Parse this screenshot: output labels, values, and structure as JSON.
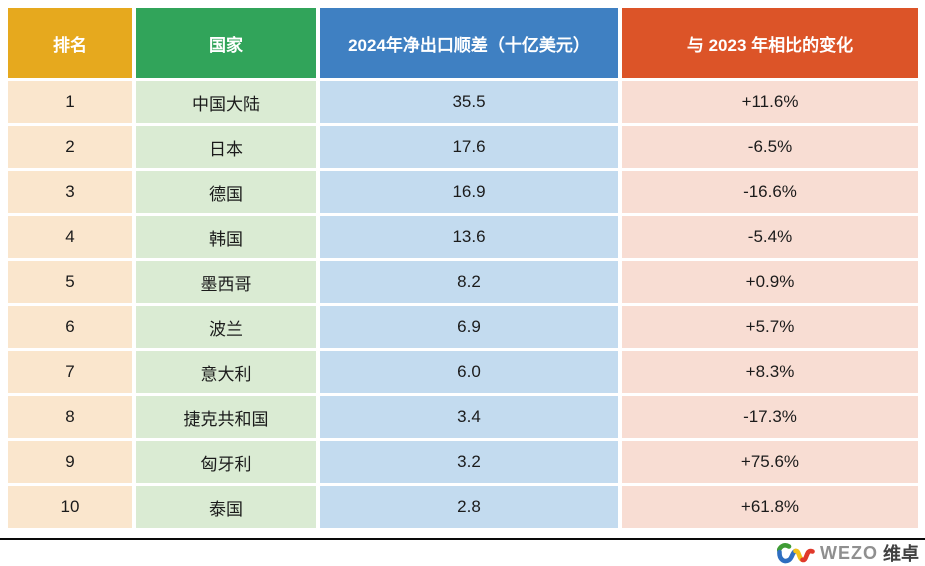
{
  "chart_data": {
    "type": "table",
    "title": "",
    "columns": [
      "排名",
      "国家",
      "2024年净出口顺差（十亿美元）",
      "与 2023 年相比的变化"
    ],
    "rows": [
      [
        "1",
        "中国大陆",
        "35.5",
        "+11.6%"
      ],
      [
        "2",
        "日本",
        "17.6",
        "-6.5%"
      ],
      [
        "3",
        "德国",
        "16.9",
        "-16.6%"
      ],
      [
        "4",
        "韩国",
        "13.6",
        "-5.4%"
      ],
      [
        "5",
        "墨西哥",
        "8.2",
        "+0.9%"
      ],
      [
        "6",
        "波兰",
        "6.9",
        "+5.7%"
      ],
      [
        "7",
        "意大利",
        "6.0",
        "+8.3%"
      ],
      [
        "8",
        "捷克共和国",
        "3.4",
        "-17.3%"
      ],
      [
        "9",
        "匈牙利",
        "3.2",
        "+75.6%"
      ],
      [
        "10",
        "泰国",
        "2.8",
        "+61.8%"
      ]
    ],
    "layout": {
      "grid": "white 3-4px gaps between cells",
      "legend": "none"
    }
  },
  "style": {
    "header_bg": [
      "#E6A91E",
      "#31A45A",
      "#3F80C2",
      "#DC5428"
    ],
    "cell_bg": [
      "#FAE6CD",
      "#DAEBD3",
      "#C3DBEF",
      "#F8DDD3"
    ],
    "header_text": "#FFFFFF",
    "cell_text": "#1B1B1B",
    "divider": "#0A0A0A"
  },
  "footer": {
    "brand_latin": "WEZO",
    "brand_cn": "维卓",
    "logo_colors": {
      "green": "#3F9C35",
      "blue": "#2E6EC0",
      "yellow": "#F2C118",
      "red": "#E0392B"
    }
  }
}
